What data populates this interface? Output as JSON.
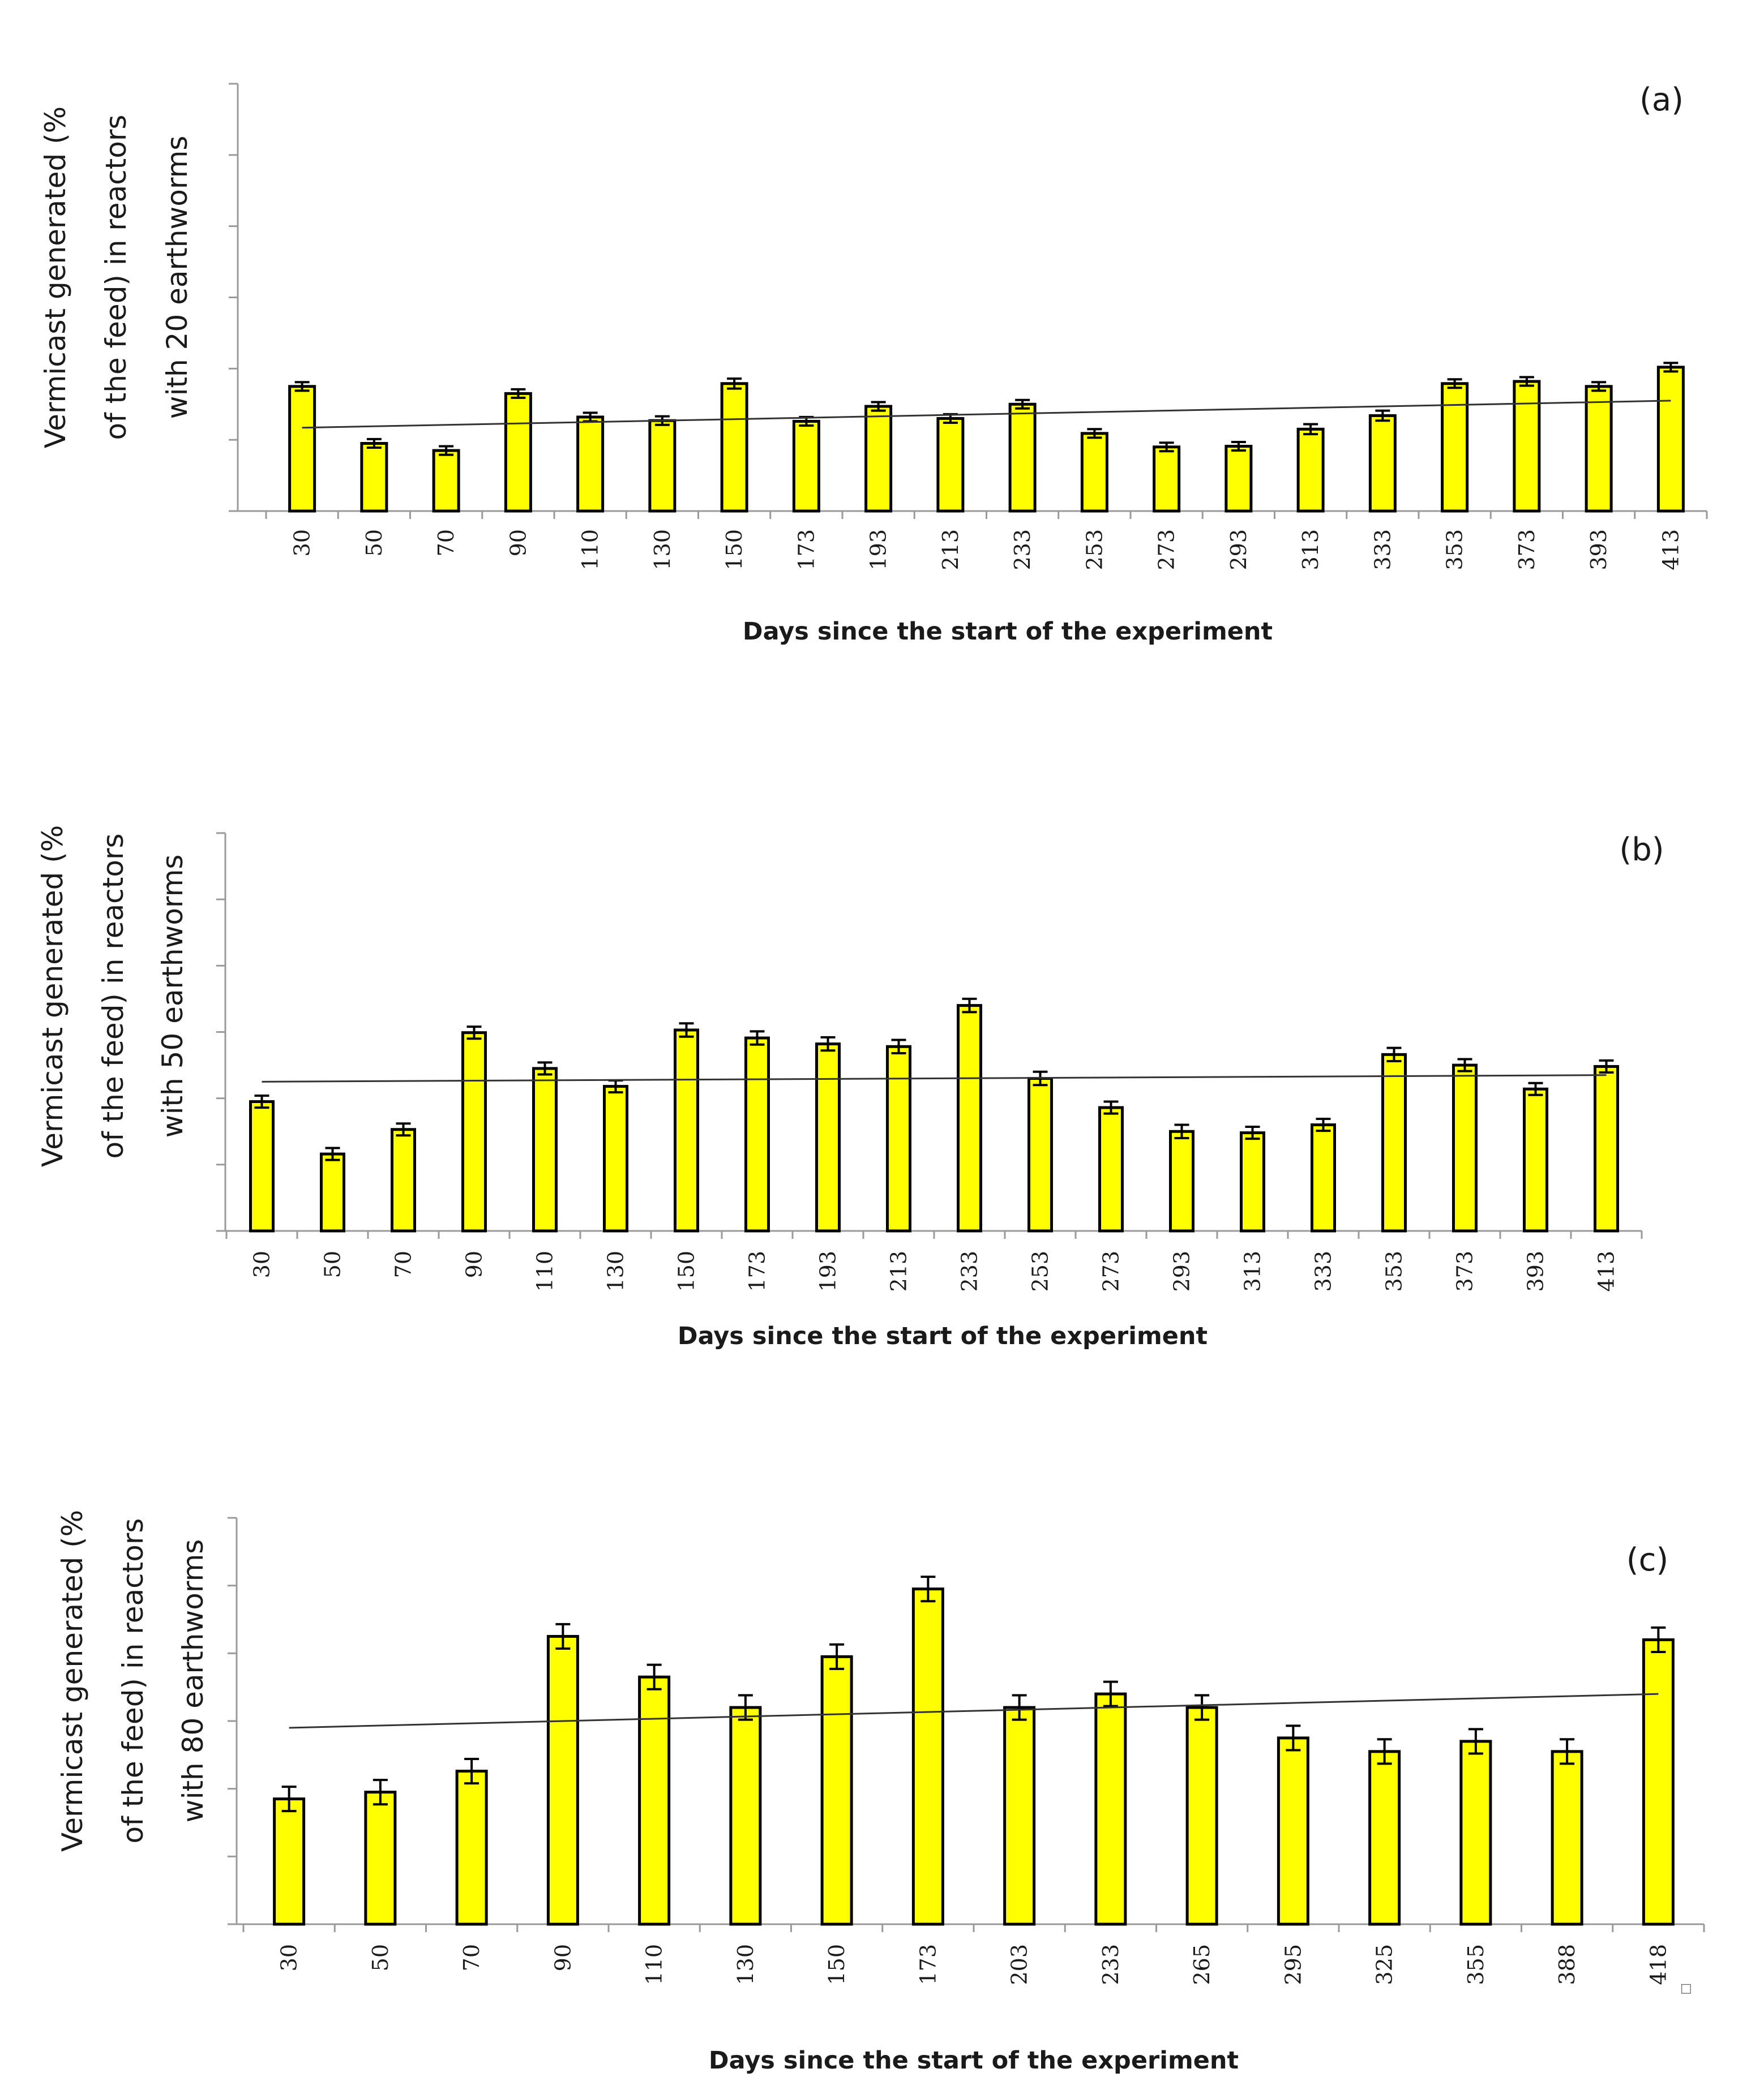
{
  "chart_data": [
    {
      "type": "bar",
      "panel_label": "(a)",
      "title": "",
      "ylabel_lines": [
        "Vermicast generated (%",
        "of the feed) in reactors",
        "with 20 earthworms"
      ],
      "xlabel": "Days since the start of the experiment",
      "categories": [
        "30",
        "50",
        "70",
        "90",
        "110",
        "130",
        "150",
        "173",
        "193",
        "213",
        "233",
        "253",
        "273",
        "293",
        "313",
        "333",
        "353",
        "373",
        "393",
        "413"
      ],
      "values": [
        17.5,
        9.5,
        8.5,
        16.5,
        13.2,
        12.7,
        17.9,
        12.6,
        14.7,
        13.0,
        15.0,
        10.9,
        9.0,
        9.1,
        11.5,
        13.4,
        17.9,
        18.2,
        17.5,
        20.2
      ],
      "errors": [
        0.6,
        0.6,
        0.6,
        0.6,
        0.6,
        0.6,
        0.7,
        0.6,
        0.6,
        0.6,
        0.6,
        0.6,
        0.6,
        0.6,
        0.7,
        0.7,
        0.6,
        0.6,
        0.6,
        0.6
      ],
      "trendline": {
        "start": 11.7,
        "end": 15.5
      },
      "ylim": [
        0,
        60
      ],
      "ytick_count": 6,
      "grid": false,
      "colors": {
        "bar": "#ffff00",
        "edge": "#000000",
        "axis": "#9a9a9a"
      }
    },
    {
      "type": "bar",
      "panel_label": "(b)",
      "title": "",
      "ylabel_lines": [
        "Vermicast generated (%",
        "of the feed) in reactors",
        "with 50 earthworms"
      ],
      "xlabel": "Days since the start of the experiment",
      "categories": [
        "30",
        "50",
        "70",
        "90",
        "110",
        "130",
        "150",
        "173",
        "193",
        "213",
        "233",
        "253",
        "273",
        "293",
        "313",
        "333",
        "353",
        "373",
        "393",
        "413"
      ],
      "values": [
        19.5,
        11.6,
        15.3,
        29.9,
        24.5,
        21.8,
        30.3,
        29.1,
        28.2,
        27.8,
        34.0,
        23.0,
        18.6,
        15.0,
        14.8,
        16.0,
        26.6,
        25.0,
        21.4,
        24.8
      ],
      "errors": [
        0.9,
        0.9,
        0.9,
        0.9,
        0.9,
        0.9,
        1.0,
        1.0,
        1.0,
        1.0,
        1.0,
        1.0,
        0.9,
        1.0,
        0.9,
        0.9,
        1.0,
        0.9,
        0.9,
        0.9
      ],
      "trendline": {
        "start": 22.5,
        "end": 23.5
      },
      "ylim": [
        0,
        60
      ],
      "ytick_count": 6,
      "grid": false,
      "colors": {
        "bar": "#ffff00",
        "edge": "#000000",
        "axis": "#9a9a9a"
      }
    },
    {
      "type": "bar",
      "panel_label": "(c)",
      "title": "",
      "ylabel_lines": [
        "Vermicast generated (%",
        "of the feed) in reactors",
        "with 80 earthworms"
      ],
      "xlabel": "Days since the start of the experiment",
      "categories": [
        "30",
        "50",
        "70",
        "90",
        "110",
        "130",
        "150",
        "173",
        "203",
        "233",
        "265",
        "295",
        "325",
        "355",
        "388",
        "418"
      ],
      "values": [
        18.5,
        19.5,
        22.6,
        42.5,
        36.5,
        32.0,
        39.5,
        49.5,
        32.0,
        34.0,
        32.0,
        27.5,
        25.5,
        27.0,
        25.5,
        42.0
      ],
      "errors": [
        1.8,
        1.8,
        1.8,
        1.8,
        1.8,
        1.8,
        1.8,
        1.8,
        1.8,
        1.8,
        1.8,
        1.8,
        1.8,
        1.8,
        1.8,
        1.8
      ],
      "trendline": {
        "start": 29.0,
        "end": 34.0
      },
      "ylim": [
        0,
        60
      ],
      "ytick_count": 6,
      "grid": false,
      "colors": {
        "bar": "#ffff00",
        "edge": "#000000",
        "axis": "#9a9a9a"
      }
    }
  ],
  "corner_marker": "□"
}
